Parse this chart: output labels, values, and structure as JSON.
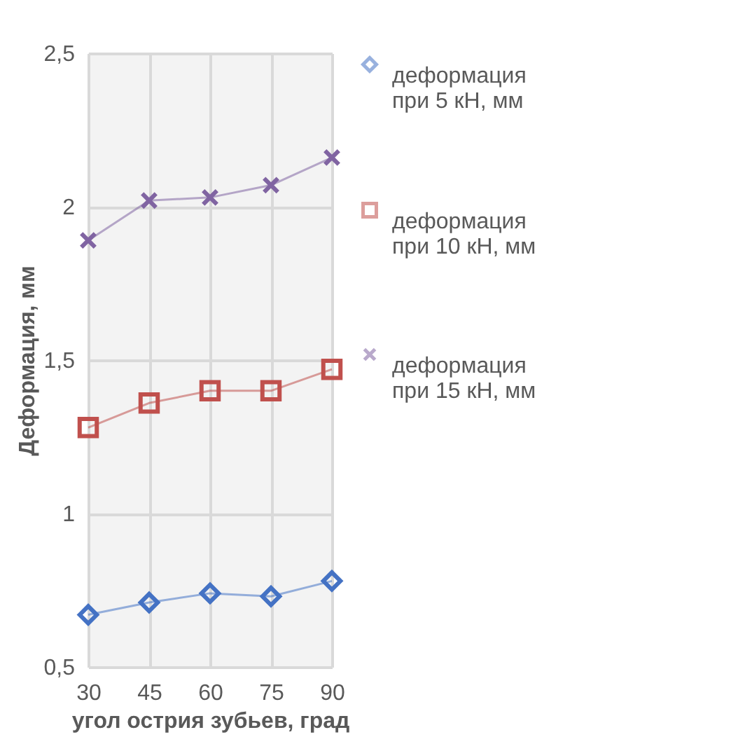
{
  "chart_data": {
    "type": "line",
    "xlabel": "угол острия зубьев, град",
    "ylabel": "Деформация, мм",
    "categories": [
      "30",
      "45",
      "60",
      "75",
      "90"
    ],
    "series": [
      {
        "name": "деформация при 5 кН, мм",
        "color": "#4472c4",
        "marker": "diamond",
        "values": [
          0.67,
          0.71,
          0.74,
          0.73,
          0.78
        ]
      },
      {
        "name": "деформация при 10 кН, мм",
        "color": "#c0504d",
        "marker": "square",
        "values": [
          1.28,
          1.36,
          1.4,
          1.4,
          1.47
        ]
      },
      {
        "name": "деформация при 15 кН, мм",
        "color": "#8064a2",
        "marker": "cross",
        "values": [
          1.89,
          2.02,
          2.03,
          2.07,
          2.16
        ]
      }
    ],
    "ylim": [
      0.5,
      2.5
    ],
    "yticks": [
      {
        "value": 0.5,
        "label": "0,5"
      },
      {
        "value": 1,
        "label": "1"
      },
      {
        "value": 1.5,
        "label": "1,5"
      },
      {
        "value": 2,
        "label": "2"
      },
      {
        "value": 2.5,
        "label": "2,5"
      }
    ],
    "grid": true,
    "legend": "right",
    "line_style": "solid"
  }
}
